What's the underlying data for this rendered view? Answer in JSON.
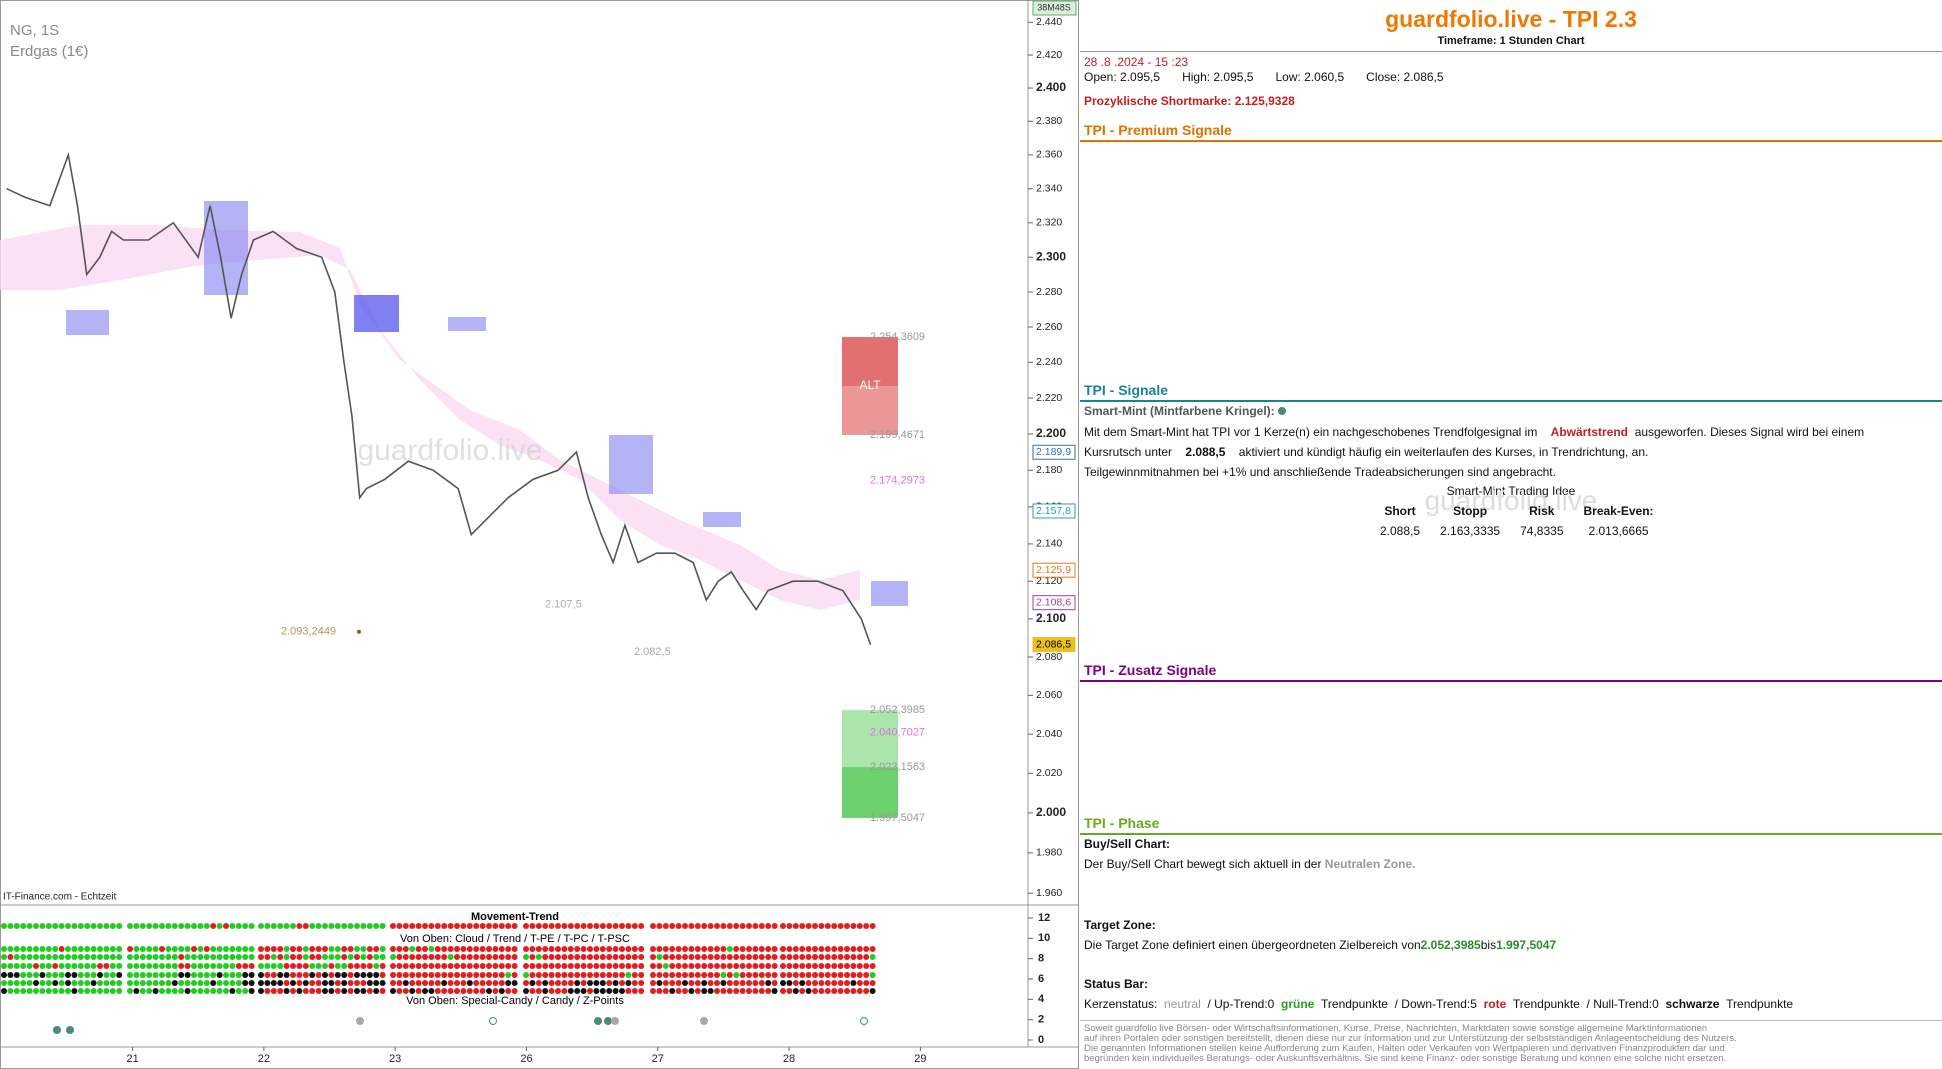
{
  "chart_data": {
    "type": "line",
    "title": "NG, 1S",
    "subtitle": "Erdgas (1€)",
    "source": "IT-Finance.com - Echtzeit",
    "watermark": "guardfolio.live",
    "timer": "38M48S",
    "zone_label": "ALT",
    "log_scale": true,
    "ylim": [
      1.9542,
      2.4522
    ],
    "yticks": [
      {
        "value": 2.44,
        "label": "2.440"
      },
      {
        "value": 2.42,
        "label": "2.420"
      },
      {
        "value": 2.4,
        "label": "2.400"
      },
      {
        "value": 2.38,
        "label": "2.380"
      },
      {
        "value": 2.36,
        "label": "2.360"
      },
      {
        "value": 2.34,
        "label": "2.340"
      },
      {
        "value": 2.32,
        "label": "2.320"
      },
      {
        "value": 2.3,
        "label": "2.300"
      },
      {
        "value": 2.28,
        "label": "2.280"
      },
      {
        "value": 2.26,
        "label": "2.260"
      },
      {
        "value": 2.24,
        "label": "2.240"
      },
      {
        "value": 2.22,
        "label": "2.220"
      },
      {
        "value": 2.2,
        "label": "2.200"
      },
      {
        "value": 2.18,
        "label": "2.180"
      },
      {
        "value": 2.16,
        "label": "2.160"
      },
      {
        "value": 2.14,
        "label": "2.140"
      },
      {
        "value": 2.12,
        "label": "2.120"
      },
      {
        "value": 2.1,
        "label": "2.100"
      },
      {
        "value": 2.08,
        "label": "2.080"
      },
      {
        "value": 2.06,
        "label": "2.060"
      },
      {
        "value": 2.04,
        "label": "2.040"
      },
      {
        "value": 2.02,
        "label": "2.020"
      },
      {
        "value": 2.0,
        "label": "2.000"
      },
      {
        "value": 1.98,
        "label": "1.980"
      },
      {
        "value": 1.96,
        "label": "1.960"
      }
    ],
    "xlim": [
      -1.01,
      6.82
    ],
    "xticks": [
      {
        "value": 0,
        "label": "21"
      },
      {
        "value": 1,
        "label": "22"
      },
      {
        "value": 2,
        "label": "23"
      },
      {
        "value": 3,
        "label": "26"
      },
      {
        "value": 4,
        "label": "27"
      },
      {
        "value": 5,
        "label": "28"
      },
      {
        "value": 6,
        "label": "29"
      }
    ],
    "x": [
      -0.96,
      -0.82,
      -0.63,
      -0.49,
      -0.42,
      -0.35,
      -0.25,
      -0.16,
      -0.07,
      0.12,
      0.31,
      0.5,
      0.59,
      0.67,
      0.75,
      0.83,
      0.92,
      1.07,
      1.25,
      1.44,
      1.54,
      1.61,
      1.67,
      1.73,
      1.78,
      1.92,
      2.1,
      2.29,
      2.48,
      2.58,
      2.72,
      2.86,
      3.05,
      3.24,
      3.38,
      3.47,
      3.57,
      3.66,
      3.75,
      3.85,
      3.99,
      4.13,
      4.27,
      4.37,
      4.46,
      4.56,
      4.65,
      4.75,
      4.84,
      5.03,
      5.22,
      5.41,
      5.55,
      5.62
    ],
    "values": [
      2.34,
      2.335,
      2.33,
      2.36,
      2.33,
      2.29,
      2.3,
      2.315,
      2.31,
      2.31,
      2.32,
      2.3,
      2.33,
      2.3,
      2.265,
      2.29,
      2.31,
      2.315,
      2.305,
      2.3,
      2.28,
      2.24,
      2.21,
      2.165,
      2.17,
      2.175,
      2.185,
      2.18,
      2.17,
      2.145,
      2.155,
      2.165,
      2.175,
      2.18,
      2.19,
      2.165,
      2.145,
      2.13,
      2.15,
      2.13,
      2.135,
      2.135,
      2.13,
      2.11,
      2.12,
      2.125,
      2.115,
      2.105,
      2.115,
      2.12,
      2.12,
      2.115,
      2.1,
      2.0865
    ],
    "color": "#555555",
    "price_markers": [
      {
        "value": 2.1899,
        "label": "2.189,9",
        "color": "#3a6ea5"
      },
      {
        "value": 2.1578,
        "label": "2.157,8",
        "color": "#2aa0a0"
      },
      {
        "value": 2.1259,
        "label": "2.125,9",
        "color": "#e07820"
      },
      {
        "value": 2.1086,
        "label": "2.108,6",
        "color": "#a040a0"
      },
      {
        "value": 2.0865,
        "label": "2.086,5",
        "color": "#e8c020"
      }
    ],
    "annotations": [
      {
        "value": 2.2543609,
        "label": "2.254,3609",
        "color": "#999999"
      },
      {
        "value": 2.1994671,
        "label": "2.199,4671",
        "color": "#999999"
      },
      {
        "value": 2.1742973,
        "label": "2.174,2973",
        "color": "#e070e0"
      },
      {
        "value": 2.0523985,
        "label": "2.052,3985",
        "color": "#999999"
      },
      {
        "value": 2.0407027,
        "label": "2.040,7027",
        "color": "#e070e0"
      },
      {
        "value": 2.0231563,
        "label": "2.023,1563",
        "color": "#999999"
      },
      {
        "value": 1.9975047,
        "label": "1.997,5047",
        "color": "#999999"
      },
      {
        "value": 2.0932449,
        "label": "2.093,2449",
        "color": "#b8955a"
      },
      {
        "value": 2.1075,
        "label": "2.107,5",
        "color": "#aaaaaa"
      },
      {
        "value": 2.0825,
        "label": "2.082,5",
        "color": "#aaaaaa"
      }
    ],
    "indicator": {
      "title": "Movement-Trend",
      "subtitle1": "Von Oben: Cloud / Trend / T-PE / T-PC / T-PSC",
      "subtitle2": "Von Oben: Special-Candy / Candy / Z-Points",
      "ylim": [
        -0.69,
        13.28
      ],
      "yticks": [
        12,
        10,
        8,
        6,
        4,
        2,
        0
      ]
    }
  },
  "panel": {
    "title": "guardfolio.live - TPI 2.3",
    "timeframe_label": "Timeframe:",
    "timeframe": "1 Stunden Chart",
    "datetime": "28 .8 .2024 - 15 :23",
    "open": "Open:  2.095,5",
    "high": "High:  2.095,5",
    "low": "Low:  2.060,5",
    "close": "Close:  2.086,5",
    "shortmarke_label": "Prozyklische Shortmarke:",
    "shortmarke": "2.125,9328",
    "premium_title": "TPI - Premium Signale",
    "signale_title": "TPI - Signale",
    "zusatz_title": "TPI - Zusatz Signale",
    "phase_title": "TPI - Phase",
    "smartmint_label": "Smart-Mint (Mintfarbene Kringel):",
    "p1": "Mit dem Smart-Mint hat TPI vor 1  Kerze(n) ein nachgeschobenes Trendfolgesignal im",
    "trend": "Abwärtstrend",
    "p2": "ausgeworfen. Dieses Signal wird bei einem",
    "p3": "Kursrutsch unter",
    "level": "2.088,5",
    "p4": "aktiviert und kündigt häufig ein weiterlaufen des Kurses, in Trendrichtung, an.",
    "p5": "Teilgewinnmitnahmen bei +1% und anschließende Tradeabsicherungen sind angebracht.",
    "idea_title": "Smart-Mint Trading Idee",
    "idea_headers": [
      "Short",
      "Stopp",
      "Risk",
      "Break-Even:"
    ],
    "idea_row": [
      "2.088,5",
      "2.163,3335",
      "74,8335",
      "2.013,6665"
    ],
    "buysell_label": "Buy/Sell Chart:",
    "buysell_text": "Der Buy/Sell Chart bewegt sich aktuell in der",
    "buysell_zone": "Neutralen Zone.",
    "target_label": "Target Zone:",
    "target_text": "Die Target Zone definiert einen übergeordneten Zielbereich von",
    "target_from": "2.052,3985",
    "target_bis": "bis",
    "target_to": "1.997,5047",
    "status_label": "Status Bar:",
    "k1": "Kerzenstatus:",
    "k2": "neutral",
    "k3": "/ Up-Trend:0",
    "k4": "grüne",
    "k5": "Trendpunkte",
    "k6": "/ Down-Trend:5",
    "k7": "rote",
    "k8": "Trendpunkte",
    "k9": "/ Null-Trend:0",
    "k10": "schwarze",
    "k11": "Trendpunkte",
    "disclaimer": [
      "Soweit guardfolio live Börsen- oder Wirtschaftsinformationen, Kurse, Preise, Nachrichten, Marktdaten sowie sonstige allgemeine Marktinformationen",
      "auf ihren Portalen oder sonstigen bereitstellt, dienen diese nur zur Information und zur Unterstützung der selbstständigen Anlageentscheidung des Nutzers.",
      "Die genannten Informationen stellen keine Aufforderung zum Kaufen, Halten oder Verkaufen von Wertpapieren und derivativen Finanzprodukten dar und",
      "begründen kein individuelles Beratungs- oder Auskunftsverhältnis. Sie sind keine Finanz- oder sonstige Beratung und können eine solche nicht ersetzen."
    ]
  }
}
